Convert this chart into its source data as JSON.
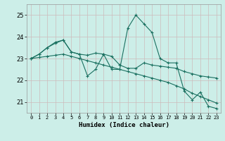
{
  "xlabel": "Humidex (Indice chaleur)",
  "bg_color": "#cceee8",
  "grid_color": "#ccbbbb",
  "line_color": "#1a7060",
  "xlim": [
    -0.5,
    23.5
  ],
  "ylim": [
    20.5,
    25.5
  ],
  "yticks": [
    21,
    22,
    23,
    24,
    25
  ],
  "xticks": [
    0,
    1,
    2,
    3,
    4,
    5,
    6,
    7,
    8,
    9,
    10,
    11,
    12,
    13,
    14,
    15,
    16,
    17,
    18,
    19,
    20,
    21,
    22,
    23
  ],
  "series": [
    {
      "x": [
        0,
        1,
        2,
        3,
        4,
        5,
        6,
        7,
        8,
        9,
        10,
        11,
        12,
        13,
        14,
        15,
        16,
        17,
        18,
        19,
        20,
        21,
        22,
        23
      ],
      "y": [
        23.0,
        23.2,
        23.5,
        23.7,
        23.85,
        23.3,
        23.2,
        22.2,
        22.5,
        23.2,
        22.5,
        22.5,
        24.4,
        25.0,
        24.6,
        24.2,
        23.0,
        22.8,
        22.8,
        21.5,
        21.1,
        21.45,
        20.8,
        20.7
      ]
    },
    {
      "x": [
        0,
        1,
        2,
        3,
        4,
        5,
        6,
        7,
        8,
        9,
        10,
        11,
        12,
        13,
        14,
        15,
        16,
        17,
        18,
        19,
        20,
        21,
        22,
        23
      ],
      "y": [
        23.0,
        23.2,
        23.5,
        23.75,
        23.85,
        23.3,
        23.2,
        23.15,
        23.25,
        23.2,
        23.1,
        22.7,
        22.55,
        22.55,
        22.8,
        22.7,
        22.65,
        22.6,
        22.55,
        22.4,
        22.3,
        22.2,
        22.15,
        22.1
      ]
    },
    {
      "x": [
        0,
        1,
        2,
        3,
        4,
        5,
        6,
        7,
        8,
        9,
        10,
        11,
        12,
        13,
        14,
        15,
        16,
        17,
        18,
        19,
        20,
        21,
        22,
        23
      ],
      "y": [
        23.0,
        23.05,
        23.1,
        23.15,
        23.2,
        23.1,
        23.0,
        22.9,
        22.8,
        22.7,
        22.6,
        22.5,
        22.4,
        22.3,
        22.2,
        22.1,
        22.0,
        21.9,
        21.75,
        21.6,
        21.4,
        21.25,
        21.1,
        20.95
      ]
    }
  ]
}
